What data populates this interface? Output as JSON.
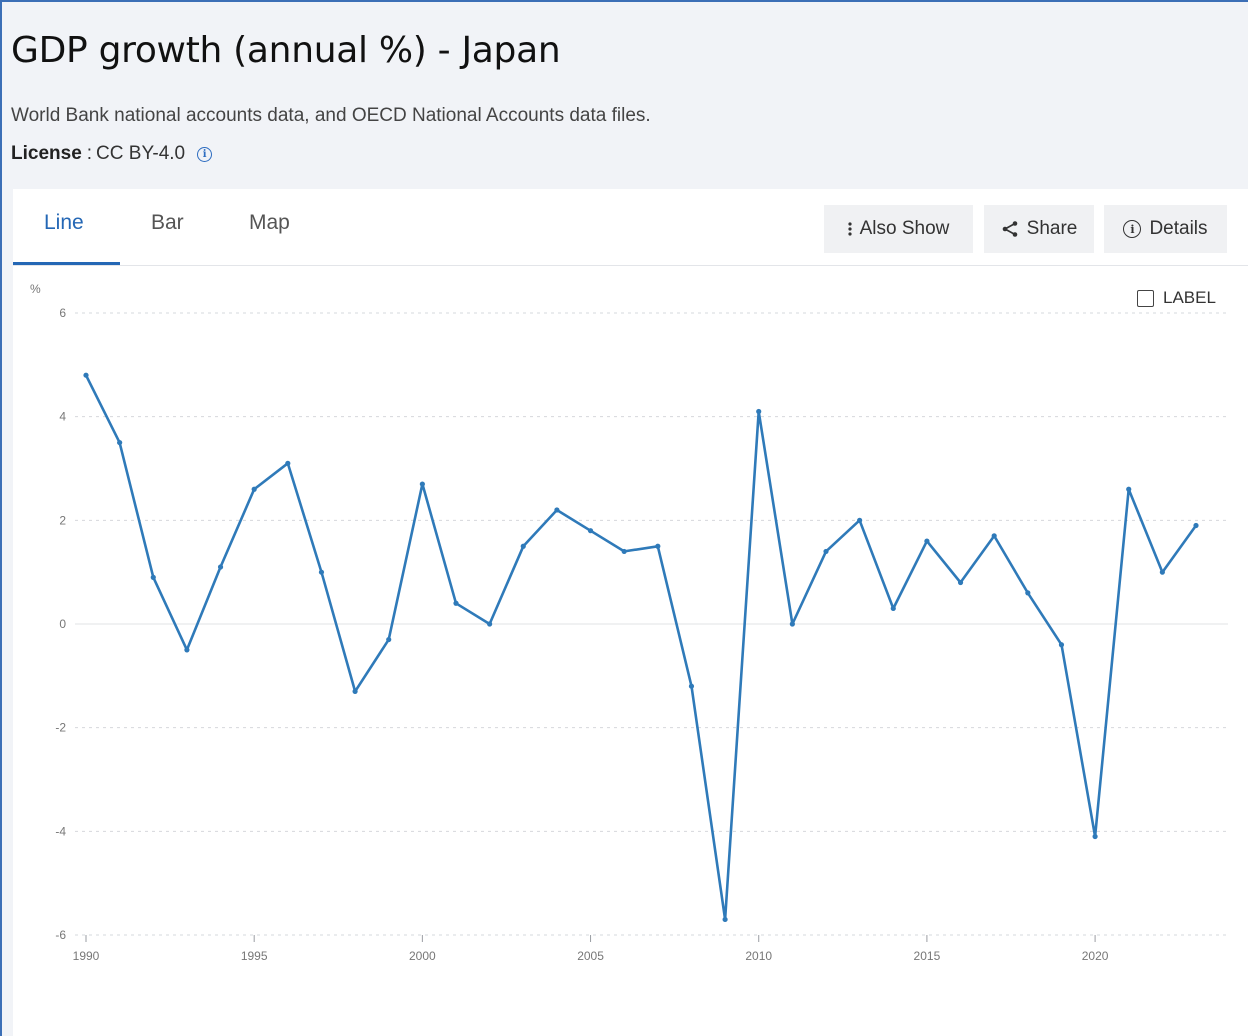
{
  "header": {
    "title": "GDP growth (annual %) - Japan",
    "source": "World Bank national accounts data, and OECD National Accounts data files.",
    "license_label": "License",
    "license_value": "CC BY-4.0"
  },
  "tabs": [
    {
      "label": "Line",
      "active": true
    },
    {
      "label": "Bar",
      "active": false
    },
    {
      "label": "Map",
      "active": false
    }
  ],
  "toolbar": {
    "also_show": "Also Show",
    "share": "Share",
    "details": "Details",
    "label_toggle": "LABEL"
  },
  "colors": {
    "accent": "#2467b5",
    "line": "#2f7ab9"
  },
  "chart_data": {
    "type": "line",
    "title": "",
    "ylabel": "%",
    "xlabel": "",
    "ylim": [
      -6,
      6
    ],
    "xlim": [
      1990,
      2023
    ],
    "yticks": [
      6,
      4,
      2,
      0,
      -2,
      -4,
      -6
    ],
    "xticks": [
      1990,
      1995,
      2000,
      2005,
      2010,
      2015,
      2020
    ],
    "grid": true,
    "series": [
      {
        "name": "",
        "x": [
          1990,
          1991,
          1992,
          1993,
          1994,
          1995,
          1996,
          1997,
          1998,
          1999,
          2000,
          2001,
          2002,
          2003,
          2004,
          2005,
          2006,
          2007,
          2008,
          2009,
          2010,
          2011,
          2012,
          2013,
          2014,
          2015,
          2016,
          2017,
          2018,
          2019,
          2020,
          2021,
          2022,
          2023
        ],
        "values": [
          4.8,
          3.5,
          0.9,
          -0.5,
          1.1,
          2.6,
          3.1,
          1.0,
          -1.3,
          -0.3,
          2.7,
          0.4,
          0.0,
          1.5,
          2.2,
          1.8,
          1.4,
          1.5,
          -1.2,
          -5.7,
          4.1,
          0.0,
          1.4,
          2.0,
          0.3,
          1.6,
          0.8,
          1.7,
          0.6,
          -0.4,
          -4.1,
          2.6,
          1.0,
          1.9
        ]
      }
    ]
  }
}
